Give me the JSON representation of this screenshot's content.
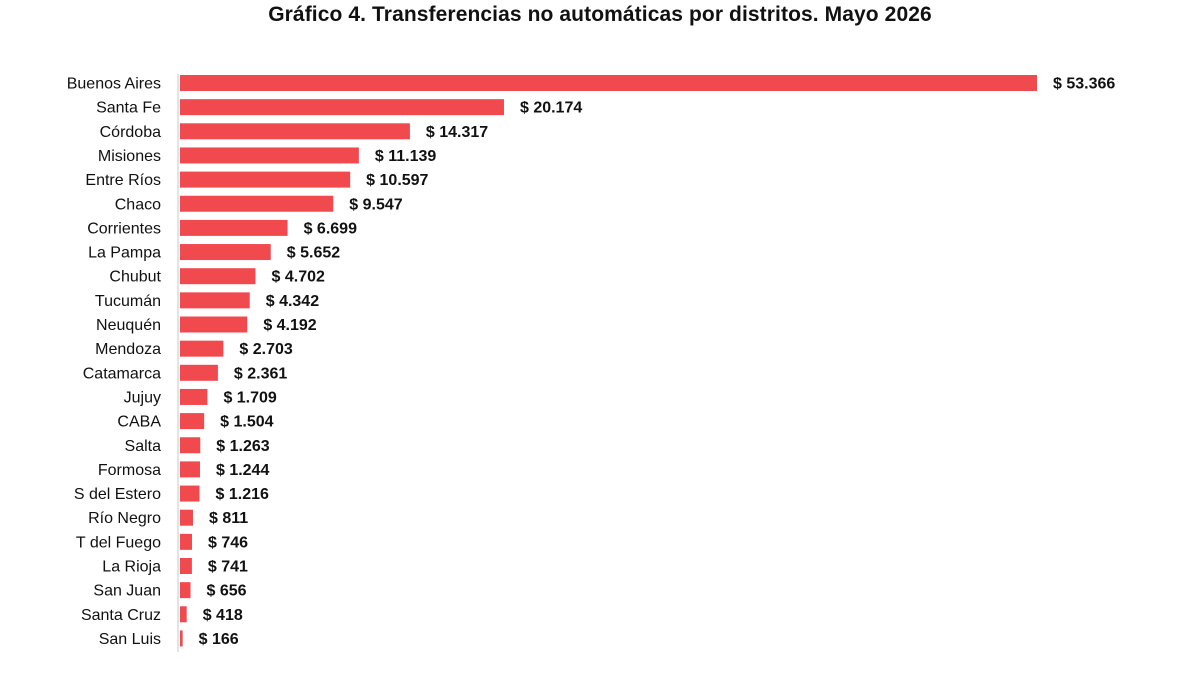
{
  "chart_data": {
    "type": "bar",
    "orientation": "horizontal",
    "title": "Gráfico 4. Transferencias no automáticas por distritos. Mayo 2026",
    "xlabel": "",
    "ylabel": "",
    "grid": false,
    "legend": "none",
    "bar_color": "#f04a4f",
    "axis_color": "#c8c8c8",
    "categories": [
      "Buenos Aires",
      "Santa Fe",
      "Córdoba",
      "Misiones",
      "Entre Ríos",
      "Chaco",
      "Corrientes",
      "La Pampa",
      "Chubut",
      "Tucumán",
      "Neuquén",
      "Mendoza",
      "Catamarca",
      "Jujuy",
      "CABA",
      "Salta",
      "Formosa",
      "S del Estero",
      "Río Negro",
      "T del Fuego",
      "La Rioja",
      "San Juan",
      "Santa Cruz",
      "San Luis"
    ],
    "values": [
      53366,
      20174,
      14317,
      11139,
      10597,
      9547,
      6699,
      5652,
      4702,
      4342,
      4192,
      2703,
      2361,
      1709,
      1504,
      1263,
      1244,
      1216,
      811,
      746,
      741,
      656,
      418,
      166
    ],
    "value_labels": [
      "$ 53.366",
      "$ 20.174",
      "$ 14.317",
      "$ 11.139",
      "$ 10.597",
      "$ 9.547",
      "$ 6.699",
      "$ 5.652",
      "$ 4.702",
      "$ 4.342",
      "$ 4.192",
      "$ 2.703",
      "$ 2.361",
      "$ 1.709",
      "$ 1.504",
      "$ 1.263",
      "$ 1.244",
      "$ 1.216",
      "$ 811",
      "$ 746",
      "$ 741",
      "$ 656",
      "$ 418",
      "$ 166"
    ]
  }
}
